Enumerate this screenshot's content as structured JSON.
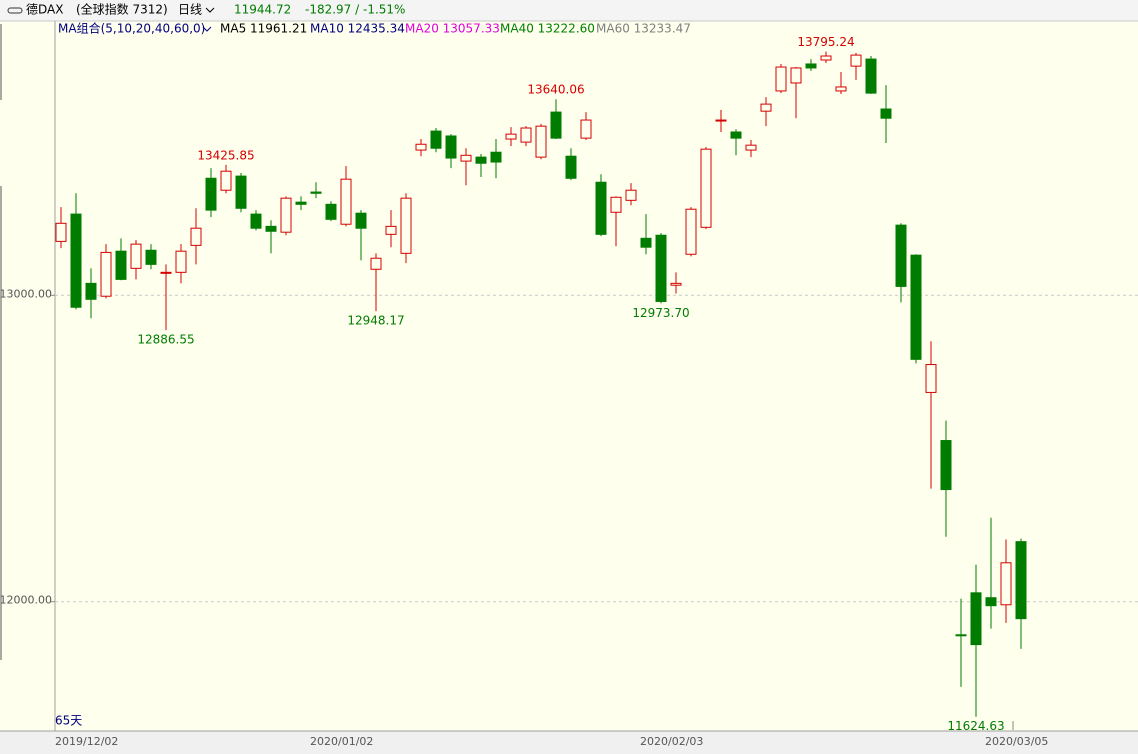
{
  "chart_data": {
    "type": "candlestick",
    "header": {
      "symbol": "德DAX",
      "market": "(全球指数 7312)",
      "period": "日线",
      "price": "11944.72",
      "change": "-182.97 / -1.51%"
    },
    "ma": {
      "group": "MA组合(5,10,20,40,60,0)",
      "ma5": "MA5 11961.21",
      "ma10": "MA10 12435.34",
      "ma20": "MA20 13057.33",
      "ma40": "MA40 13222.60",
      "ma60": "MA60 13233.47"
    },
    "days": "65天",
    "up_color": "#d40000",
    "down_color": "#007c00",
    "categories": [
      "2019/12/02",
      null,
      null,
      null,
      null,
      null,
      null,
      null,
      null,
      null,
      null,
      null,
      null,
      null,
      null,
      null,
      null,
      "2020/01/02",
      null,
      null,
      null,
      null,
      null,
      null,
      null,
      null,
      null,
      null,
      null,
      null,
      null,
      null,
      null,
      null,
      null,
      null,
      null,
      null,
      null,
      "2020/02/03",
      null,
      null,
      null,
      null,
      null,
      null,
      null,
      null,
      null,
      null,
      null,
      null,
      null,
      null,
      null,
      null,
      null,
      null,
      null,
      null,
      null,
      null,
      "2020/03/05",
      null,
      null
    ],
    "open": [
      13176,
      13265,
      13039,
      12997,
      13144,
      13088,
      13147,
      13072,
      13075,
      13163,
      13382,
      13343,
      13389,
      13265,
      13225,
      13206,
      13304,
      13337,
      13297,
      13232,
      13268,
      13085,
      13199,
      13137,
      13474,
      13536,
      13520,
      13438,
      13451,
      13467,
      13510,
      13500,
      13451,
      13598,
      13454,
      13513,
      13369,
      13271,
      13310,
      13186,
      13196,
      13033,
      13134,
      13222,
      13569,
      13533,
      13474,
      13601,
      13667,
      13693,
      13755,
      13768,
      13667,
      13748,
      13771,
      13608,
      13229,
      13131,
      12683,
      12526,
      11892,
      12029,
      12013,
      11990,
      12196
    ],
    "high": [
      13288,
      13333,
      13088,
      13167,
      13186,
      13180,
      13167,
      13101,
      13167,
      13284,
      13415,
      13425.85,
      13399,
      13278,
      13245,
      13323,
      13323,
      13369,
      13307,
      13422,
      13278,
      13137,
      13278,
      13333,
      13510,
      13546,
      13526,
      13480,
      13461,
      13510,
      13549,
      13552,
      13559,
      13640.06,
      13480,
      13598,
      13395,
      13323,
      13366,
      13265,
      13203,
      13075,
      13288,
      13484,
      13605,
      13542,
      13507,
      13647,
      13755,
      13745,
      13771,
      13795.24,
      13729,
      13791,
      13781,
      13686,
      13235,
      13134,
      12850,
      12591,
      12010,
      12121,
      12274,
      12203,
      12206
    ],
    "low": [
      13154,
      12954,
      12925,
      12990,
      13049,
      13052,
      13085,
      12886.55,
      13039,
      13101,
      13255,
      13333,
      13271,
      13212,
      13137,
      13196,
      13278,
      13317,
      13242,
      13225,
      13114,
      12948.17,
      13157,
      13105,
      13454,
      13467,
      13415,
      13359,
      13386,
      13382,
      13487,
      13487,
      13444,
      13510,
      13376,
      13507,
      13193,
      13160,
      13294,
      13134,
      12973.7,
      13006,
      13127,
      13216,
      13533,
      13457,
      13451,
      13552,
      13660,
      13578,
      13732,
      13758,
      13657,
      13703,
      13657,
      13497,
      12977,
      12778,
      12369,
      12212,
      11722,
      11624.63,
      11912,
      11931,
      11846
    ],
    "close": [
      13235,
      12961,
      12987,
      13140,
      13052,
      13167,
      13101,
      13075,
      13144,
      13219,
      13278,
      13405,
      13284,
      13219,
      13209,
      13317,
      13297,
      13333,
      13248,
      13379,
      13219,
      13121,
      13225,
      13317,
      13493,
      13480,
      13448,
      13457,
      13431,
      13435,
      13526,
      13546,
      13552,
      13513,
      13382,
      13572,
      13199,
      13320,
      13343,
      13157,
      12980,
      13039,
      13281,
      13477,
      13572,
      13513,
      13490,
      13624,
      13745,
      13742,
      13742,
      13781,
      13680,
      13784,
      13660,
      13578,
      13029,
      12791,
      12774,
      12366,
      11889,
      11860,
      11987,
      12127,
      11944.72
    ],
    "annotations": [
      {
        "value": 13425.85,
        "label": "13425.85"
      },
      {
        "value": 12886.55,
        "label": "12886.55"
      },
      {
        "value": 12948.17,
        "label": "12948.17"
      },
      {
        "value": 13640.06,
        "label": "13640.06"
      },
      {
        "value": 12973.7,
        "label": "12973.70"
      },
      {
        "value": 13795.24,
        "label": "13795.24"
      },
      {
        "value": 11624.63,
        "label": "11624.63"
      }
    ],
    "ylim": [
      11578,
      13892
    ],
    "yticks": [
      {
        "value": 12000,
        "label": "12000.00"
      },
      {
        "value": 13000,
        "label": "13000.00"
      }
    ],
    "grid": true
  }
}
